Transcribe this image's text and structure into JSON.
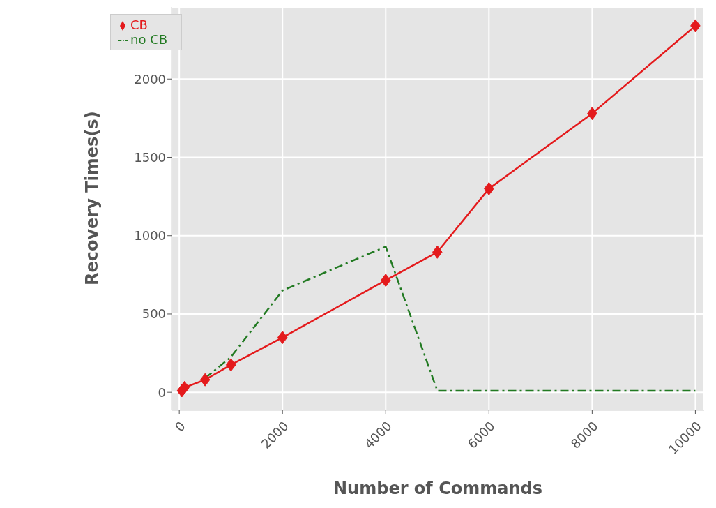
{
  "chart_data": {
    "type": "line",
    "xlabel": "Number of Commands",
    "ylabel": "Recovery Times(s)",
    "x": [
      50,
      100,
      500,
      1000,
      2000,
      4000,
      5000,
      6000,
      8000,
      10000
    ],
    "series": [
      {
        "name": "CB",
        "color": "#e41a1c",
        "marker": "diamond",
        "line_style": "solid",
        "values": [
          10,
          30,
          80,
          175,
          350,
          715,
          895,
          1300,
          1780,
          2340
        ]
      },
      {
        "name": "no CB",
        "color": "#227a22",
        "marker": "none",
        "line_style": "dashed",
        "values": [
          null,
          null,
          90,
          225,
          650,
          930,
          10,
          10,
          10,
          10
        ]
      }
    ],
    "xlim": [
      -150,
      10170
    ],
    "xticks": [
      0,
      2000,
      4000,
      6000,
      8000,
      10000
    ],
    "ylim": [
      -115,
      2460
    ],
    "yticks": [
      0,
      500,
      1000,
      1500,
      2000
    ],
    "grid": true,
    "legend": "top left"
  }
}
